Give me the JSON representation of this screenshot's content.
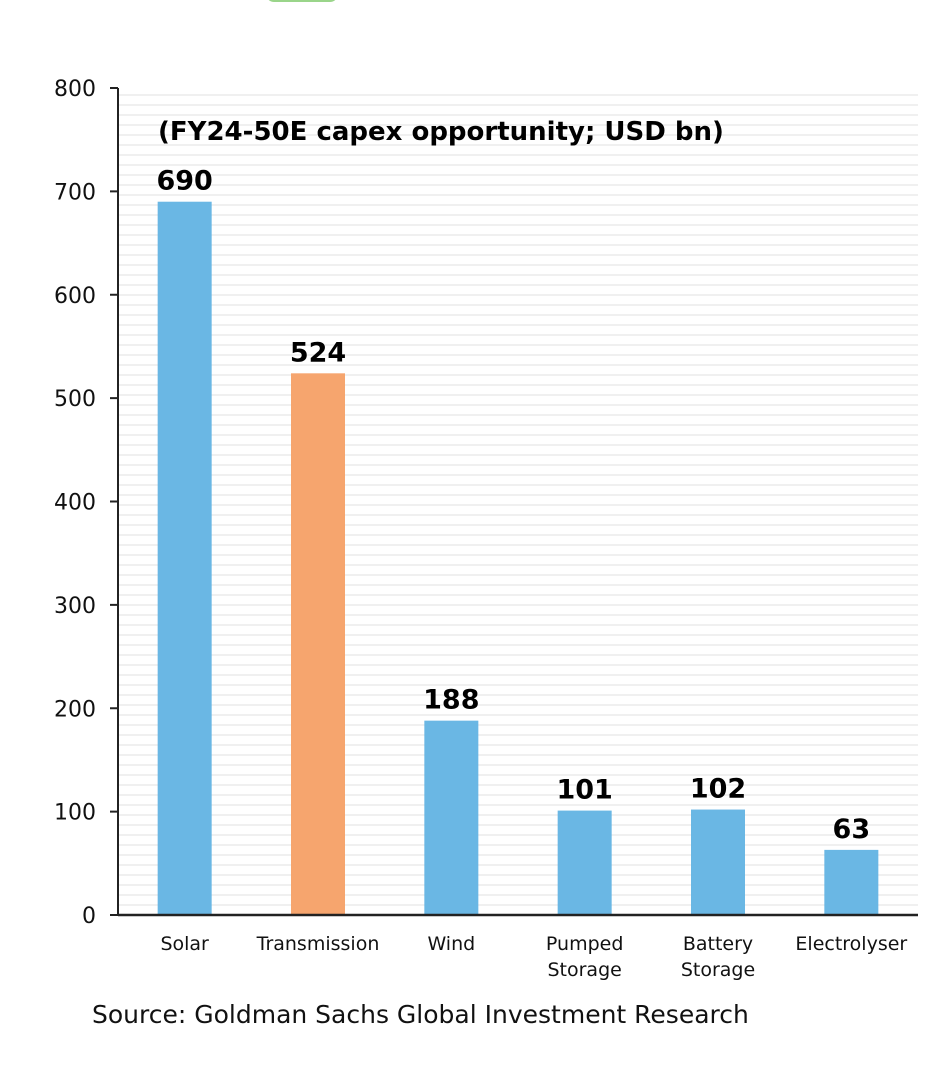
{
  "chart_data": {
    "type": "bar",
    "title": "(FY24-50E capex opportunity; USD bn)",
    "categories": [
      "Solar",
      "Transmission",
      "Wind",
      "Pumped\nStorage",
      "Battery\nStorage",
      "Electrolyser"
    ],
    "values": [
      690,
      524,
      188,
      101,
      102,
      63
    ],
    "data_labels": [
      "690",
      "524",
      "188",
      "101",
      "102",
      "63"
    ],
    "bar_colors": [
      "#6ab7e4",
      "#f6a56e",
      "#6ab7e4",
      "#6ab7e4",
      "#6ab7e4",
      "#6ab7e4"
    ],
    "ylim": [
      0,
      800
    ],
    "yticks": [
      "0",
      "100",
      "200",
      "300",
      "400",
      "500",
      "600",
      "700",
      "800"
    ],
    "grid": true,
    "xlabel": "",
    "ylabel": ""
  },
  "source": "Source: Goldman Sachs Global Investment Research",
  "colors": {
    "accent": "#9ad58a",
    "gridline": "#e6e6e6",
    "axis": "#222222"
  }
}
